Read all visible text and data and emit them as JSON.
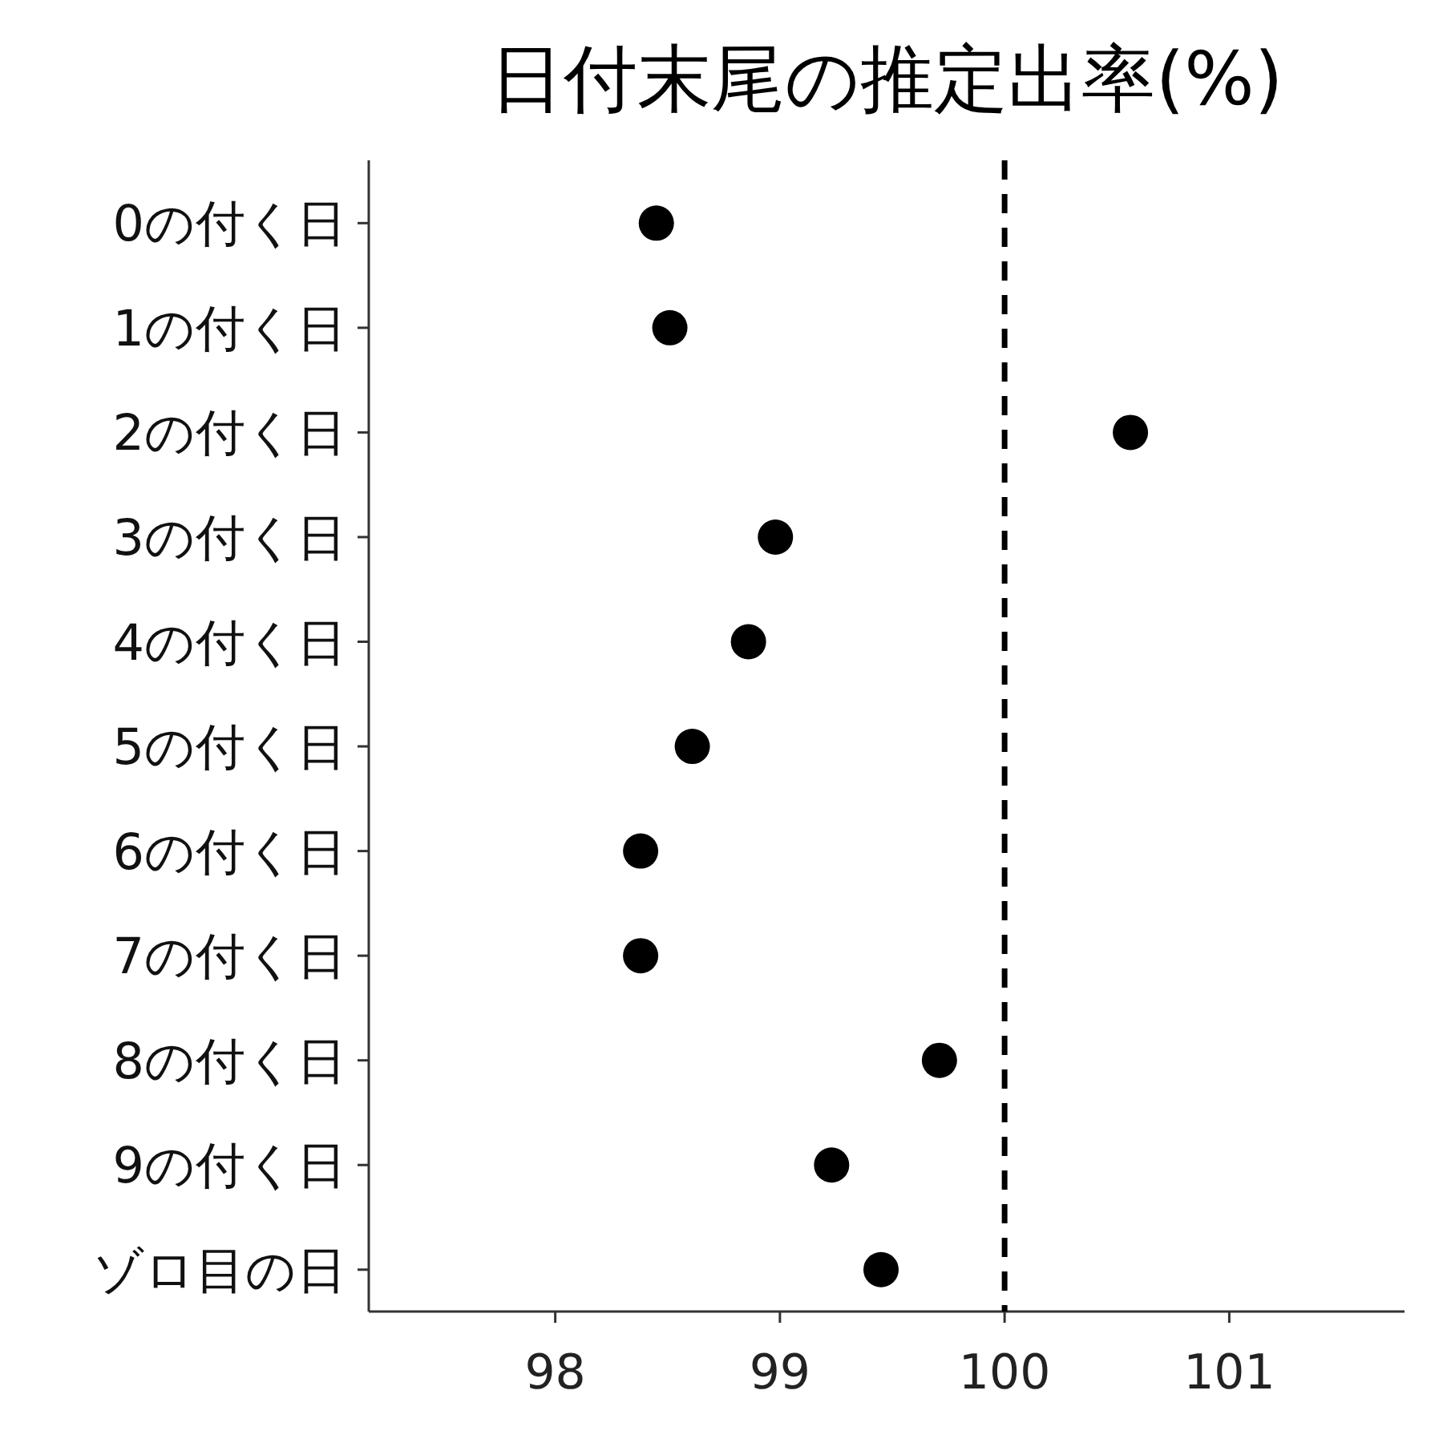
{
  "chart_data": {
    "type": "scatter",
    "orientation": "horizontal",
    "title": "日付末尾の推定出率(%)",
    "categories": [
      "0の付く日",
      "1の付く日",
      "2の付く日",
      "3の付く日",
      "4の付く日",
      "5の付く日",
      "6の付く日",
      "7の付く日",
      "8の付く日",
      "9の付く日",
      "ゾロ目の日"
    ],
    "values": [
      98.45,
      98.51,
      100.56,
      98.98,
      98.86,
      98.61,
      98.38,
      98.38,
      99.71,
      99.23,
      99.45
    ],
    "color": "#000000",
    "marker": "circle",
    "xlim": [
      97.17,
      101.78
    ],
    "xticks": [
      98,
      99,
      100,
      101
    ],
    "ref_lines": [
      {
        "axis": "x",
        "value": 100,
        "color": "#000000",
        "line_style": "dashed"
      }
    ],
    "grid": false
  }
}
